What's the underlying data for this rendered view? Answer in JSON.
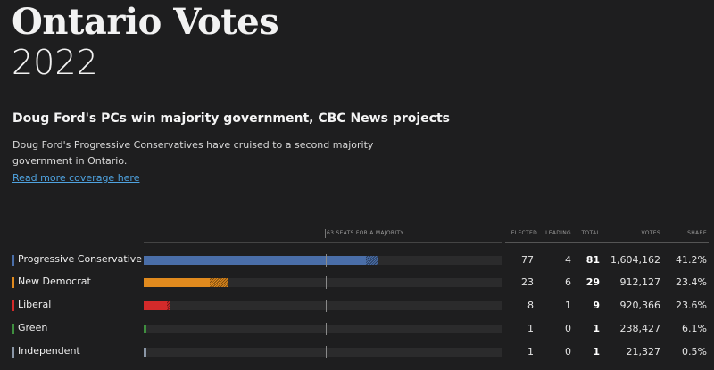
{
  "title": "Ontario Votes",
  "year": "2022",
  "headline": "Doug Ford's PCs win majority government, CBC News projects",
  "dek": "Doug Ford's Progressive Conservatives have cruised to a second majority government in Ontario.",
  "link_text": "Read more coverage here",
  "table": {
    "majority_label": "63 SEATS FOR A MAJORITY",
    "majority_seats": 63,
    "total_seats": 124,
    "headers": {
      "elected": "ELECTED",
      "leading": "LEADING",
      "total": "TOTAL",
      "votes": "VOTES",
      "share": "SHARE"
    },
    "rows": [
      {
        "party": "Progressive Conservative",
        "color": "#4a6ea8",
        "elected": "77",
        "leading": "4",
        "total": "81",
        "votes": "1,604,162",
        "share": "41.2%",
        "elected_n": 77,
        "leading_n": 4
      },
      {
        "party": "New Democrat",
        "color": "#e08a1e",
        "elected": "23",
        "leading": "6",
        "total": "29",
        "votes": "912,127",
        "share": "23.4%",
        "elected_n": 23,
        "leading_n": 6
      },
      {
        "party": "Liberal",
        "color": "#d32a2a",
        "elected": "8",
        "leading": "1",
        "total": "9",
        "votes": "920,366",
        "share": "23.6%",
        "elected_n": 8,
        "leading_n": 1
      },
      {
        "party": "Green",
        "color": "#3f8f3f",
        "elected": "1",
        "leading": "0",
        "total": "1",
        "votes": "238,427",
        "share": "6.1%",
        "elected_n": 1,
        "leading_n": 0
      },
      {
        "party": "Independent",
        "color": "#8a96a6",
        "elected": "1",
        "leading": "0",
        "total": "1",
        "votes": "21,327",
        "share": "0.5%",
        "elected_n": 1,
        "leading_n": 0
      }
    ]
  }
}
